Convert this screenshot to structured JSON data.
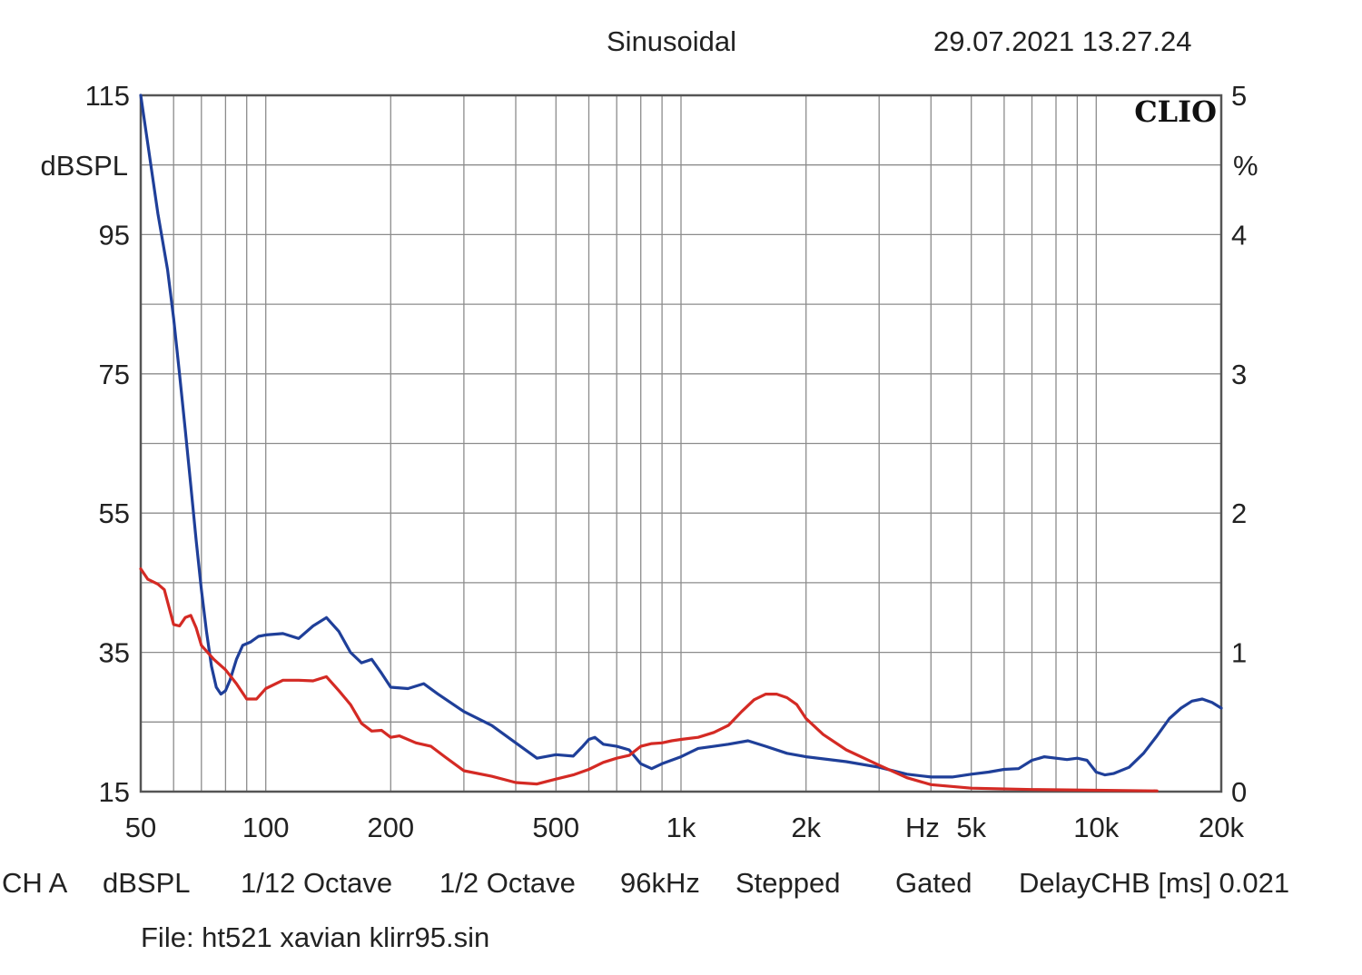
{
  "header": {
    "mode": "Sinusoidal",
    "datetime": "29.07.2021 13.27.24"
  },
  "footer": {
    "items": [
      "CH A",
      "dBSPL",
      "1/12 Octave",
      "1/2 Octave",
      "96kHz",
      "Stepped",
      "Gated",
      "DelayCHB [ms] 0.021"
    ],
    "file": "File: ht521 xavian klirr95.sin"
  },
  "chart_data": {
    "type": "line",
    "title": "",
    "logo": "CLIO",
    "x_scale": "log",
    "xlim": [
      50,
      20000
    ],
    "x_unit_label": "Hz",
    "x_ticks": [
      {
        "value": 50,
        "label": "50"
      },
      {
        "value": 100,
        "label": "100"
      },
      {
        "value": 200,
        "label": "200"
      },
      {
        "value": 500,
        "label": "500"
      },
      {
        "value": 1000,
        "label": "1k"
      },
      {
        "value": 2000,
        "label": "2k"
      },
      {
        "value": 5000,
        "label": "5k"
      },
      {
        "value": 10000,
        "label": "10k"
      },
      {
        "value": 20000,
        "label": "20k"
      }
    ],
    "y_left": {
      "label": "dBSPL",
      "lim": [
        15,
        115
      ],
      "ticks": [
        15,
        35,
        55,
        75,
        95,
        115
      ]
    },
    "y_right": {
      "label": "%",
      "lim": [
        0,
        5
      ],
      "ticks": [
        0,
        1,
        2,
        3,
        4,
        5
      ]
    },
    "grid": true,
    "series": [
      {
        "axis": "left",
        "color": "#1f3f99",
        "points": [
          [
            50,
            115
          ],
          [
            52,
            108
          ],
          [
            55,
            98
          ],
          [
            58,
            90
          ],
          [
            60,
            83
          ],
          [
            62,
            75
          ],
          [
            64,
            67
          ],
          [
            66,
            59
          ],
          [
            68,
            51
          ],
          [
            70,
            44
          ],
          [
            72,
            38
          ],
          [
            74,
            33
          ],
          [
            76,
            30
          ],
          [
            78,
            29
          ],
          [
            80,
            29.5
          ],
          [
            82,
            31
          ],
          [
            85,
            34
          ],
          [
            88,
            36
          ],
          [
            92,
            36.5
          ],
          [
            96,
            37.3
          ],
          [
            100,
            37.5
          ],
          [
            110,
            37.7
          ],
          [
            120,
            37
          ],
          [
            130,
            38.8
          ],
          [
            140,
            40
          ],
          [
            150,
            38
          ],
          [
            160,
            35
          ],
          [
            170,
            33.5
          ],
          [
            180,
            34
          ],
          [
            190,
            32
          ],
          [
            200,
            30
          ],
          [
            220,
            29.8
          ],
          [
            240,
            30.5
          ],
          [
            260,
            29
          ],
          [
            300,
            26.5
          ],
          [
            350,
            24.5
          ],
          [
            400,
            22
          ],
          [
            450,
            19.8
          ],
          [
            500,
            20.3
          ],
          [
            550,
            20.1
          ],
          [
            580,
            21.5
          ],
          [
            600,
            22.5
          ],
          [
            620,
            22.8
          ],
          [
            650,
            21.8
          ],
          [
            700,
            21.5
          ],
          [
            750,
            21
          ],
          [
            800,
            19
          ],
          [
            850,
            18.3
          ],
          [
            900,
            19
          ],
          [
            1000,
            20
          ],
          [
            1100,
            21.2
          ],
          [
            1200,
            21.5
          ],
          [
            1300,
            21.8
          ],
          [
            1450,
            22.3
          ],
          [
            1600,
            21.5
          ],
          [
            1800,
            20.5
          ],
          [
            2000,
            20
          ],
          [
            2500,
            19.3
          ],
          [
            3000,
            18.5
          ],
          [
            3500,
            17.5
          ],
          [
            4000,
            17.1
          ],
          [
            4500,
            17.1
          ],
          [
            5000,
            17.5
          ],
          [
            5500,
            17.8
          ],
          [
            6000,
            18.2
          ],
          [
            6500,
            18.3
          ],
          [
            7000,
            19.5
          ],
          [
            7500,
            20
          ],
          [
            8000,
            19.8
          ],
          [
            8500,
            19.6
          ],
          [
            9000,
            19.8
          ],
          [
            9500,
            19.5
          ],
          [
            10000,
            17.8
          ],
          [
            10500,
            17.4
          ],
          [
            11000,
            17.6
          ],
          [
            12000,
            18.5
          ],
          [
            13000,
            20.5
          ],
          [
            14000,
            23
          ],
          [
            15000,
            25.5
          ],
          [
            16000,
            27
          ],
          [
            17000,
            28
          ],
          [
            18000,
            28.3
          ],
          [
            19000,
            27.8
          ],
          [
            20000,
            27
          ]
        ]
      },
      {
        "axis": "left",
        "color": "#d42a24",
        "points": [
          [
            50,
            47
          ],
          [
            52,
            45.5
          ],
          [
            55,
            44.8
          ],
          [
            57,
            44
          ],
          [
            60,
            39
          ],
          [
            62,
            38.8
          ],
          [
            64,
            40
          ],
          [
            66,
            40.3
          ],
          [
            68,
            38.5
          ],
          [
            70,
            36
          ],
          [
            75,
            34
          ],
          [
            80,
            32.5
          ],
          [
            85,
            30.5
          ],
          [
            90,
            28.3
          ],
          [
            95,
            28.3
          ],
          [
            100,
            29.8
          ],
          [
            110,
            31
          ],
          [
            120,
            31
          ],
          [
            130,
            30.9
          ],
          [
            140,
            31.5
          ],
          [
            150,
            29.5
          ],
          [
            160,
            27.5
          ],
          [
            170,
            24.8
          ],
          [
            180,
            23.7
          ],
          [
            190,
            23.8
          ],
          [
            200,
            22.8
          ],
          [
            210,
            23
          ],
          [
            230,
            22
          ],
          [
            250,
            21.5
          ],
          [
            270,
            20
          ],
          [
            300,
            18
          ],
          [
            350,
            17.2
          ],
          [
            400,
            16.3
          ],
          [
            450,
            16.1
          ],
          [
            500,
            16.8
          ],
          [
            550,
            17.4
          ],
          [
            600,
            18.2
          ],
          [
            650,
            19.2
          ],
          [
            700,
            19.8
          ],
          [
            750,
            20.2
          ],
          [
            800,
            21.5
          ],
          [
            850,
            21.9
          ],
          [
            900,
            22
          ],
          [
            950,
            22.3
          ],
          [
            1000,
            22.5
          ],
          [
            1100,
            22.8
          ],
          [
            1200,
            23.5
          ],
          [
            1300,
            24.5
          ],
          [
            1400,
            26.5
          ],
          [
            1500,
            28.2
          ],
          [
            1600,
            29
          ],
          [
            1700,
            29
          ],
          [
            1800,
            28.5
          ],
          [
            1900,
            27.5
          ],
          [
            2000,
            25.5
          ],
          [
            2200,
            23.2
          ],
          [
            2500,
            21
          ],
          [
            3000,
            18.8
          ],
          [
            3500,
            17
          ],
          [
            4000,
            16
          ],
          [
            5000,
            15.5
          ],
          [
            7000,
            15.3
          ],
          [
            10000,
            15.2
          ],
          [
            14000,
            15.1
          ]
        ]
      }
    ]
  }
}
